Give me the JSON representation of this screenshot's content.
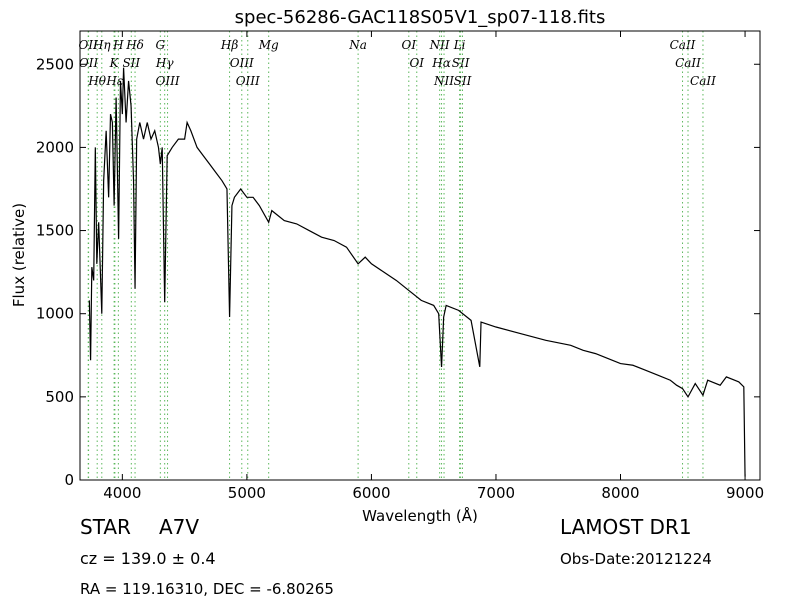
{
  "chart_data": {
    "type": "line",
    "title": "spec-56286-GAC118S05V1_sp07-118.fits",
    "x_label": "Wavelength (Å)",
    "y_label": "Flux (relative)",
    "xlim": [
      3660,
      9120
    ],
    "ylim": [
      0,
      2700
    ],
    "xticks": [
      4000,
      5000,
      6000,
      7000,
      8000,
      9000
    ],
    "yticks": [
      0,
      500,
      1000,
      1500,
      2000,
      2500
    ],
    "color": "#000000",
    "marker_color": "#5cb85c",
    "x": [
      3735,
      3745,
      3755,
      3770,
      3783,
      3795,
      3810,
      3835,
      3850,
      3870,
      3890,
      3905,
      3920,
      3934,
      3950,
      3970,
      3985,
      4000,
      4010,
      4030,
      4050,
      4070,
      4090,
      4102,
      4115,
      4140,
      4170,
      4200,
      4230,
      4260,
      4290,
      4305,
      4320,
      4340,
      4360,
      4400,
      4450,
      4500,
      4520,
      4550,
      4600,
      4650,
      4700,
      4750,
      4800,
      4840,
      4861,
      4880,
      4900,
      4950,
      5000,
      5050,
      5100,
      5175,
      5200,
      5300,
      5400,
      5500,
      5600,
      5700,
      5800,
      5893,
      5950,
      6000,
      6100,
      6200,
      6300,
      6400,
      6500,
      6540,
      6563,
      6580,
      6600,
      6700,
      6800,
      6870,
      6880,
      7000,
      7200,
      7400,
      7600,
      7700,
      7800,
      7900,
      8000,
      8100,
      8200,
      8300,
      8400,
      8450,
      8498,
      8542,
      8600,
      8662,
      8700,
      8800,
      8850,
      8950,
      8990,
      9000
    ],
    "values": [
      1080,
      720,
      1280,
      1200,
      2000,
      1300,
      1550,
      1000,
      1800,
      2100,
      1700,
      2200,
      2150,
      1650,
      2300,
      1450,
      2400,
      2200,
      2480,
      2150,
      2400,
      2250,
      1800,
      1150,
      2050,
      2150,
      2050,
      2150,
      2050,
      2100,
      2000,
      1900,
      2000,
      1070,
      1950,
      2000,
      2050,
      2050,
      2150,
      2100,
      2000,
      1950,
      1900,
      1850,
      1800,
      1750,
      980,
      1650,
      1700,
      1750,
      1700,
      1700,
      1650,
      1550,
      1620,
      1560,
      1540,
      1500,
      1460,
      1440,
      1400,
      1300,
      1340,
      1300,
      1250,
      1200,
      1140,
      1080,
      1050,
      1000,
      680,
      980,
      1050,
      1020,
      960,
      680,
      950,
      920,
      880,
      840,
      810,
      780,
      760,
      730,
      700,
      690,
      660,
      630,
      600,
      570,
      550,
      500,
      580,
      510,
      600,
      570,
      620,
      590,
      560,
      20
    ],
    "line_markers": [
      {
        "label": "OII",
        "wavelength": 3726
      },
      {
        "label": "OII",
        "wavelength": 3729
      },
      {
        "label": "Hθ",
        "wavelength": 3798
      },
      {
        "label": "Hη",
        "wavelength": 3835
      },
      {
        "label": "K",
        "wavelength": 3934
      },
      {
        "label": "Hε",
        "wavelength": 3940
      },
      {
        "label": "H",
        "wavelength": 3968
      },
      {
        "label": "SII",
        "wavelength": 4072
      },
      {
        "label": "Hδ",
        "wavelength": 4102
      },
      {
        "label": "G",
        "wavelength": 4305
      },
      {
        "label": "Hγ",
        "wavelength": 4340
      },
      {
        "label": "OIII",
        "wavelength": 4363
      },
      {
        "label": "Hβ",
        "wavelength": 4861
      },
      {
        "label": "OIII",
        "wavelength": 4959
      },
      {
        "label": "OIII",
        "wavelength": 5007
      },
      {
        "label": "Mg",
        "wavelength": 5175
      },
      {
        "label": "Na",
        "wavelength": 5893
      },
      {
        "label": "OI",
        "wavelength": 6300
      },
      {
        "label": "OI",
        "wavelength": 6364
      },
      {
        "label": "NII",
        "wavelength": 6548
      },
      {
        "label": "Hα",
        "wavelength": 6563
      },
      {
        "label": "NII",
        "wavelength": 6583
      },
      {
        "label": "Li",
        "wavelength": 6708
      },
      {
        "label": "SII",
        "wavelength": 6716
      },
      {
        "label": "SII",
        "wavelength": 6731
      },
      {
        "label": "CaII",
        "wavelength": 8498
      },
      {
        "label": "CaII",
        "wavelength": 8542
      },
      {
        "label": "CaII",
        "wavelength": 8662
      }
    ],
    "object_class": "STAR",
    "subclass": "A7V",
    "redshift": "cz = 139.0 ± 0.4",
    "coordinates": "RA = 119.16310, DEC = -6.80265",
    "survey": "LAMOST DR1",
    "obs_date": "Obs-Date:20121224"
  }
}
